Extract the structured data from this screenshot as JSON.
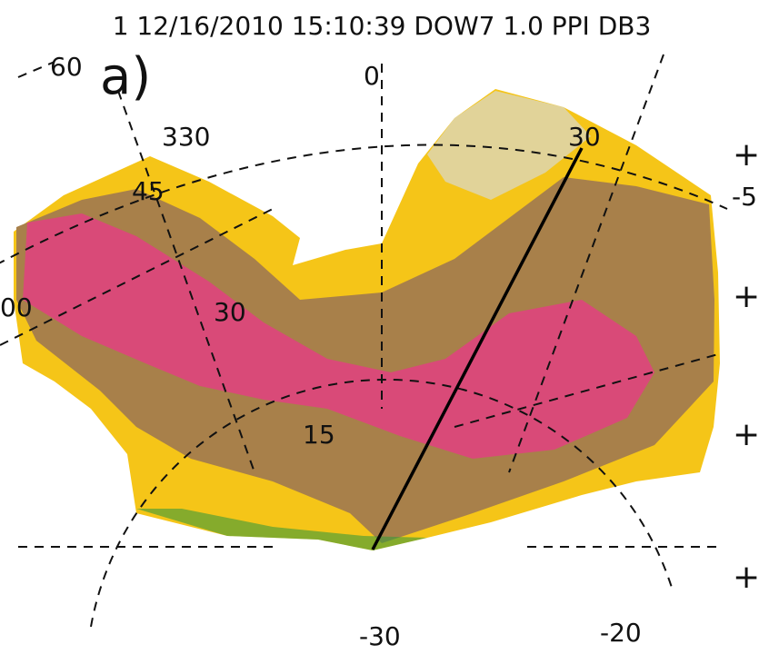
{
  "header": {
    "title": "1 12/16/2010 15:10:39 DOW7 1.0 PPI DB3",
    "panel": "a)"
  },
  "labels": [
    "60",
    "0",
    "330",
    "30",
    "45",
    "30",
    "00",
    "15",
    "-5",
    "+",
    "+",
    "+",
    "+",
    "-30",
    "-20"
  ]
}
